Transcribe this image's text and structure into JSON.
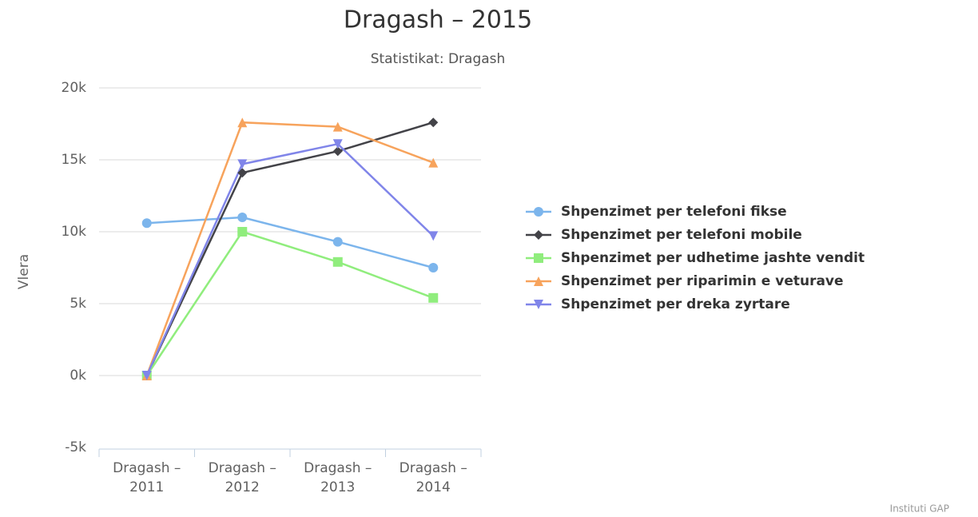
{
  "chart_data": {
    "type": "line",
    "title": "Dragash – 2015",
    "subtitle": "Statistikat: Dragash",
    "y_label": "Vlera",
    "credits": "Instituti GAP",
    "categories": [
      "Dragash – 2011",
      "Dragash – 2012",
      "Dragash – 2013",
      "Dragash – 2014"
    ],
    "series": [
      {
        "name": "Shpenzimet per telefoni fikse",
        "color": "#7cb5ec",
        "marker": "circle",
        "values": [
          10600,
          11000,
          9300,
          7500
        ]
      },
      {
        "name": "Shpenzimet per telefoni mobile",
        "color": "#434348",
        "marker": "diamond",
        "values": [
          0,
          14100,
          15600,
          17600
        ]
      },
      {
        "name": "Shpenzimet per udhetime jashte vendit",
        "color": "#90ed7d",
        "marker": "square",
        "values": [
          0,
          10000,
          7900,
          5400
        ]
      },
      {
        "name": "Shpenzimet per riparimin e veturave",
        "color": "#f7a35c",
        "marker": "triangle",
        "values": [
          0,
          17600,
          17300,
          14800
        ]
      },
      {
        "name": "Shpenzimet per dreka zyrtare",
        "color": "#8085e9",
        "marker": "triangle-down",
        "values": [
          0,
          14700,
          16100,
          9700
        ]
      }
    ],
    "ylim": [
      -5000,
      20000
    ],
    "yticks": [
      {
        "value": -5000,
        "label": "-5k"
      },
      {
        "value": 0,
        "label": "0k"
      },
      {
        "value": 5000,
        "label": "5k"
      },
      {
        "value": 10000,
        "label": "10k"
      },
      {
        "value": 15000,
        "label": "15k"
      },
      {
        "value": 20000,
        "label": "20k"
      }
    ],
    "grid": true,
    "legend": "right"
  }
}
